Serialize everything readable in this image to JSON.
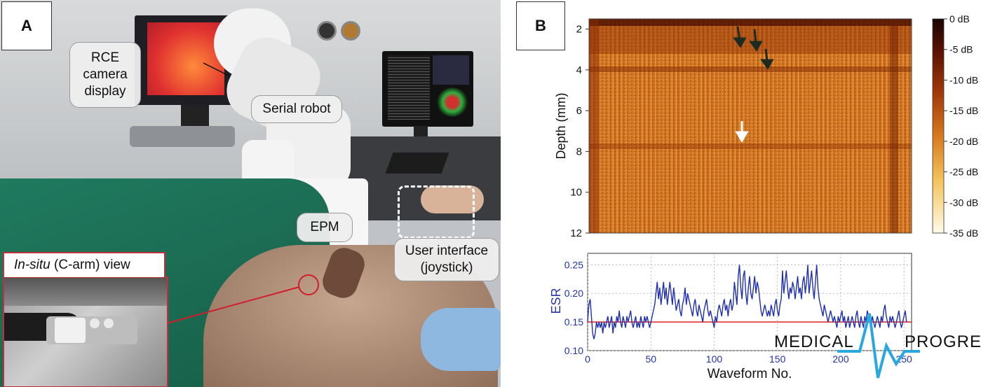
{
  "panel_a": {
    "label": "A",
    "callouts": {
      "rce_display": "RCE\ncamera\ndisplay",
      "serial_robot": "Serial robot",
      "epm": "EPM",
      "user_interface": "User interface\n(joystick)"
    },
    "inset_title_italic": "In-situ",
    "inset_title_rest": " (C-arm) view"
  },
  "panel_b": {
    "label": "B",
    "colors": {
      "esr_line": "#1f2fb0",
      "threshold_line": "#e02020",
      "axis_text_blue": "#2233aa"
    }
  },
  "watermark": {
    "left": "MEDICAL",
    "right": "PROGRESS"
  },
  "chart_data": [
    {
      "type": "heatmap",
      "title": "",
      "xlabel": "",
      "ylabel": "Depth (mm)",
      "y_ticks": [
        "2",
        "4",
        "6",
        "8",
        "10",
        "12"
      ],
      "ylim": [
        12,
        1.5
      ],
      "colorbar": {
        "ticks": [
          "0 dB",
          "-5 dB",
          "-10 dB",
          "-15 dB",
          "-20 dB",
          "-25 dB",
          "-30 dB",
          "-35 dB"
        ],
        "range": [
          -35,
          0
        ]
      },
      "annotations": [
        "dark arrows near depth 2-3.5 mm",
        "white arrow near depth 7.3 mm"
      ]
    },
    {
      "type": "line",
      "title": "",
      "xlabel": "Waveform No.",
      "ylabel": "ESR",
      "xlim": [
        0,
        256
      ],
      "ylim": [
        0.1,
        0.27
      ],
      "x_ticks": [
        "0",
        "50",
        "100",
        "150",
        "200",
        "250"
      ],
      "y_ticks": [
        "0.10",
        "0.15",
        "0.20",
        "0.25"
      ],
      "threshold": 0.15,
      "grid": true,
      "series": [
        {
          "values": [
            0.15,
            0.18,
            0.19,
            0.16,
            0.13,
            0.12,
            0.13,
            0.15,
            0.14,
            0.15,
            0.14,
            0.15,
            0.13,
            0.15,
            0.14,
            0.15,
            0.16,
            0.14,
            0.15,
            0.16,
            0.13,
            0.15,
            0.14,
            0.16,
            0.15,
            0.17,
            0.15,
            0.14,
            0.16,
            0.15,
            0.14,
            0.16,
            0.15,
            0.16,
            0.17,
            0.15,
            0.14,
            0.15,
            0.16,
            0.14,
            0.15,
            0.14,
            0.16,
            0.15,
            0.14,
            0.16,
            0.15,
            0.16,
            0.15,
            0.14,
            0.15,
            0.16,
            0.17,
            0.18,
            0.2,
            0.22,
            0.19,
            0.21,
            0.18,
            0.2,
            0.22,
            0.19,
            0.21,
            0.18,
            0.2,
            0.22,
            0.2,
            0.18,
            0.21,
            0.19,
            0.17,
            0.18,
            0.19,
            0.17,
            0.16,
            0.18,
            0.19,
            0.21,
            0.18,
            0.2,
            0.19,
            0.18,
            0.17,
            0.16,
            0.18,
            0.19,
            0.17,
            0.16,
            0.18,
            0.17,
            0.16,
            0.15,
            0.17,
            0.18,
            0.19,
            0.17,
            0.16,
            0.17,
            0.16,
            0.15,
            0.14,
            0.16,
            0.15,
            0.17,
            0.18,
            0.17,
            0.16,
            0.18,
            0.19,
            0.17,
            0.18,
            0.16,
            0.18,
            0.19,
            0.17,
            0.18,
            0.22,
            0.2,
            0.18,
            0.23,
            0.25,
            0.21,
            0.19,
            0.23,
            0.24,
            0.2,
            0.18,
            0.21,
            0.23,
            0.2,
            0.19,
            0.21,
            0.23,
            0.2,
            0.22,
            0.21,
            0.19,
            0.17,
            0.16,
            0.17,
            0.18,
            0.17,
            0.16,
            0.17,
            0.16,
            0.18,
            0.17,
            0.16,
            0.18,
            0.19,
            0.17,
            0.16,
            0.18,
            0.19,
            0.24,
            0.2,
            0.22,
            0.24,
            0.21,
            0.19,
            0.21,
            0.2,
            0.22,
            0.21,
            0.19,
            0.21,
            0.23,
            0.2,
            0.21,
            0.19,
            0.22,
            0.23,
            0.2,
            0.22,
            0.25,
            0.2,
            0.22,
            0.24,
            0.21,
            0.19,
            0.22,
            0.25,
            0.21,
            0.19,
            0.18,
            0.17,
            0.16,
            0.18,
            0.17,
            0.16,
            0.15,
            0.16,
            0.17,
            0.16,
            0.15,
            0.16,
            0.15,
            0.14,
            0.16,
            0.15,
            0.16,
            0.17,
            0.15,
            0.16,
            0.14,
            0.15,
            0.16,
            0.14,
            0.15,
            0.16,
            0.15,
            0.14,
            0.16,
            0.17,
            0.15,
            0.14,
            0.16,
            0.15,
            0.14,
            0.16,
            0.15,
            0.17,
            0.16,
            0.15,
            0.14,
            0.16,
            0.15,
            0.14,
            0.15,
            0.16,
            0.15,
            0.14,
            0.16,
            0.15,
            0.17,
            0.18,
            0.16,
            0.15,
            0.14,
            0.16,
            0.15,
            0.16,
            0.15,
            0.14,
            0.15,
            0.16,
            0.17,
            0.15,
            0.14,
            0.15,
            0.16,
            0.17,
            0.15
          ]
        }
      ]
    }
  ]
}
